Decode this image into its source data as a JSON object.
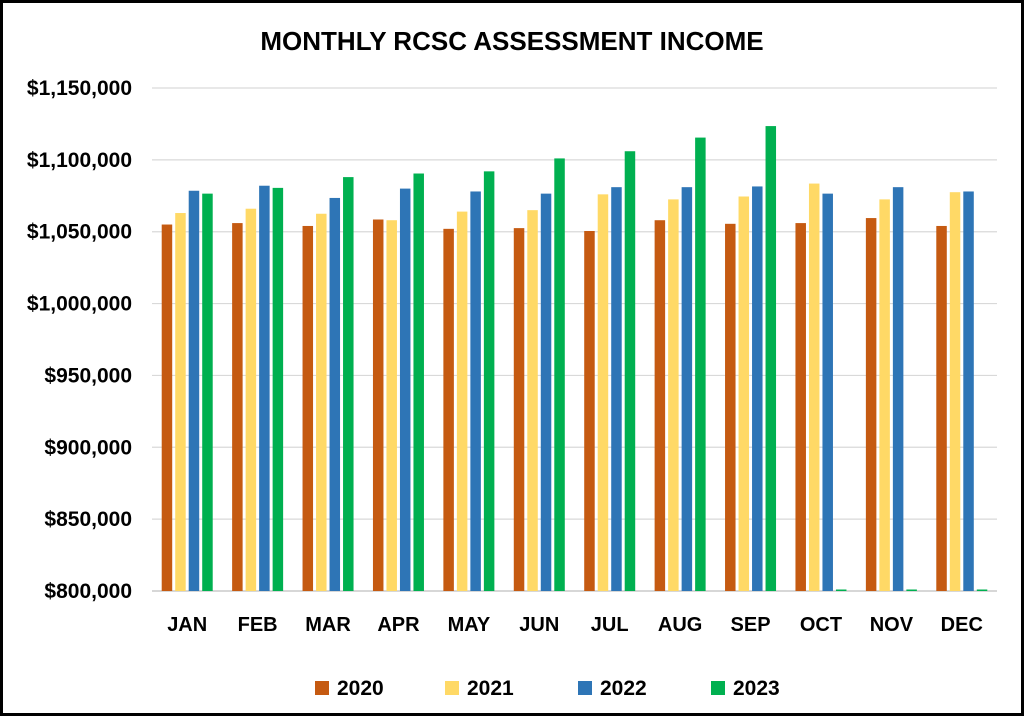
{
  "chart_data": {
    "type": "bar",
    "title": "MONTHLY RCSC ASSESSMENT INCOME",
    "xlabel": "",
    "ylabel": "",
    "categories": [
      "JAN",
      "FEB",
      "MAR",
      "APR",
      "MAY",
      "JUN",
      "JUL",
      "AUG",
      "SEP",
      "OCT",
      "NOV",
      "DEC"
    ],
    "ylim": [
      800000,
      1150000
    ],
    "yticks": [
      800000,
      850000,
      900000,
      950000,
      1000000,
      1050000,
      1100000,
      1150000
    ],
    "ytick_labels": [
      "$800,000",
      "$850,000",
      "$900,000",
      "$950,000",
      "$1,000,000",
      "$1,050,000",
      "$1,100,000",
      "$1,150,000"
    ],
    "grid": true,
    "legend_position": "bottom",
    "series": [
      {
        "name": "2020",
        "color": "#C55A11",
        "values": [
          1055000,
          1056000,
          1054000,
          1058500,
          1052000,
          1052500,
          1050500,
          1058000,
          1055500,
          1056000,
          1059500,
          1054000
        ]
      },
      {
        "name": "2021",
        "color": "#FFD966",
        "values": [
          1063000,
          1066000,
          1062500,
          1058000,
          1064000,
          1065000,
          1076000,
          1072500,
          1074500,
          1083500,
          1072500,
          1077500
        ]
      },
      {
        "name": "2022",
        "color": "#2E75B6",
        "values": [
          1078500,
          1082000,
          1073500,
          1080000,
          1078000,
          1076500,
          1081000,
          1081000,
          1081500,
          1076500,
          1081000,
          1078000
        ]
      },
      {
        "name": "2023",
        "color": "#00B050",
        "values": [
          1076500,
          1080500,
          1088000,
          1090500,
          1092000,
          1101000,
          1106000,
          1115500,
          1123500,
          800000,
          800000,
          800000
        ]
      }
    ]
  }
}
